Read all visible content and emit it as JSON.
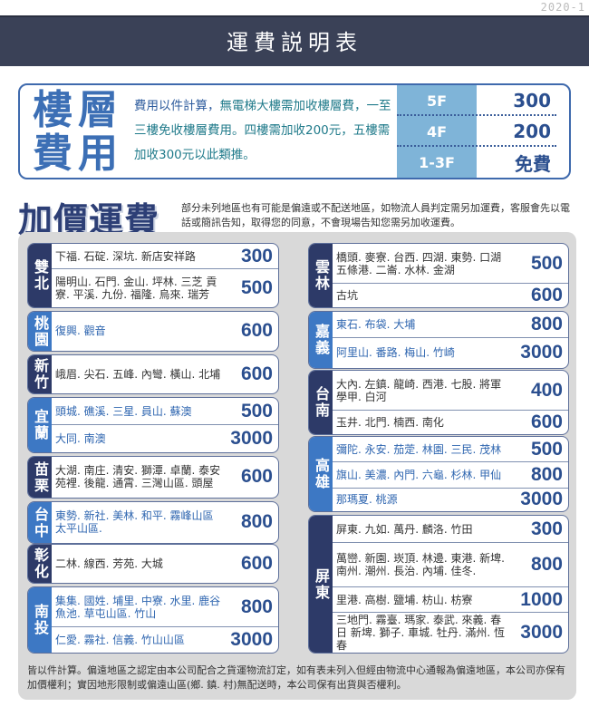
{
  "version": "2020-1",
  "title": "運費説明表",
  "floor": {
    "title": "樓層費用",
    "desc_parts": [
      "費用以件計算，",
      "無電梯大樓需加收樓層費，一至三樓免收樓層費用。",
      "四樓需加收200元，五樓需加收300元以此類推。"
    ],
    "table": [
      {
        "floor": "5F",
        "price": "300"
      },
      {
        "floor": "4F",
        "price": "200"
      },
      {
        "floor": "1-3F",
        "price": "免費"
      }
    ]
  },
  "surcharge": {
    "title": "加價運費",
    "note": "部分未列地區也有可能是偏遠或不配送地區，如物流人員判定需另加運費，客服會先以電話或簡訊告知，取得您的同意，不會現場告知您需另加收運費。"
  },
  "colors": {
    "dark": "#2d3a68",
    "blue": "#3d78c4",
    "price": "#2b4f8f"
  },
  "regions_left": [
    {
      "name": "雙北",
      "style": "dark",
      "rows": [
        {
          "areas": "下福. 石碇. 深坑. 新店安祥路",
          "price": "300"
        },
        {
          "areas": "陽明山. 石門. 金山. 坪林. 三芝 貢寮. 平溪. 九份. 福隆. 烏來. 瑞芳",
          "price": "500"
        }
      ]
    },
    {
      "name": "桃園",
      "style": "blue",
      "rows": [
        {
          "areas": "復興. 觀音",
          "price": "600"
        }
      ]
    },
    {
      "name": "新竹",
      "style": "dark",
      "rows": [
        {
          "areas": "峨眉. 尖石. 五峰. 內彎. 橫山. 北埔",
          "price": "600"
        }
      ]
    },
    {
      "name": "宜蘭",
      "style": "blue",
      "rows": [
        {
          "areas": "頭城. 礁溪. 三星. 員山. 蘇澳",
          "price": "500"
        },
        {
          "areas": "大同. 南澳",
          "price": "3000"
        }
      ]
    },
    {
      "name": "苗栗",
      "style": "dark",
      "rows": [
        {
          "areas": "大湖. 南庄. 清安. 獅潭. 卓蘭. 泰安 苑裡. 後龍. 通霄. 三灣山區. 頭屋",
          "price": "600"
        }
      ]
    },
    {
      "name": "台中",
      "style": "blue",
      "rows": [
        {
          "areas": "東勢. 新社. 美林. 和平. 霧峰山區 太平山區.",
          "price": "800"
        }
      ]
    },
    {
      "name": "彰化",
      "style": "dark",
      "rows": [
        {
          "areas": "二林. 線西. 芳苑. 大城",
          "price": "600"
        }
      ]
    },
    {
      "name": "南投",
      "style": "blue",
      "rows": [
        {
          "areas": "集集. 國姓. 埔里. 中寮. 水里. 鹿谷 魚池. 草屯山區. 竹山",
          "price": "800"
        },
        {
          "areas": "仁愛. 霧社. 信義. 竹山山區",
          "price": "3000"
        }
      ]
    }
  ],
  "regions_right": [
    {
      "name": "雲林",
      "style": "dark",
      "rows": [
        {
          "areas": "橋頭. 麥寮. 台西. 四湖. 東勢. 口湖 五條港. 二崙. 水林. 金湖",
          "price": "500"
        },
        {
          "areas": "古坑",
          "price": "600"
        }
      ]
    },
    {
      "name": "嘉義",
      "style": "blue",
      "rows": [
        {
          "areas": "東石. 布袋. 大埔",
          "price": "800"
        },
        {
          "areas": "阿里山. 番路. 梅山. 竹崎",
          "price": "3000"
        }
      ]
    },
    {
      "name": "台南",
      "style": "dark",
      "rows": [
        {
          "areas": "大內. 左鎮. 龍崎. 西港. 七股. 將軍 學甲. 白河",
          "price": "400"
        },
        {
          "areas": "玉井. 北門. 楠西. 南化",
          "price": "600"
        }
      ]
    },
    {
      "name": "高雄",
      "style": "blue",
      "rows": [
        {
          "areas": "彌陀. 永安. 茄萣. 林園. 三民. 茂林",
          "price": "500"
        },
        {
          "areas": "旗山. 美濃. 內門. 六龜. 杉林. 甲仙",
          "price": "800"
        },
        {
          "areas": "那瑪夏. 桃源",
          "price": "3000"
        }
      ]
    },
    {
      "name": "屏東",
      "style": "dark",
      "rows": [
        {
          "areas": "屏東. 九如. 萬丹. 麟洛. 竹田",
          "price": "300"
        },
        {
          "areas": "萬巒. 新園. 崁頂. 林邊. 東港. 新埤. 南州. 潮州. 長治. 內埔. 佳冬.",
          "price": "800"
        },
        {
          "areas": "里港. 高樹. 鹽埔. 枋山. 枋寮",
          "price": "1000"
        },
        {
          "areas": "三地門. 霧臺. 瑪家. 泰武. 來義. 春日 新埤. 獅子. 車城. 牡丹. 滿州. 恆春",
          "price": "3000"
        }
      ]
    }
  ],
  "footer": "皆以件計算。偏遠地區之認定由本公司配合之貨運物流訂定，如有表未列入但經由物流中心通報為偏遠地區，本公司亦保有加價權利；實因地形限制或偏遠山區(鄉. 鎮. 村)無配送時，本公司保有出貨與否權利。"
}
